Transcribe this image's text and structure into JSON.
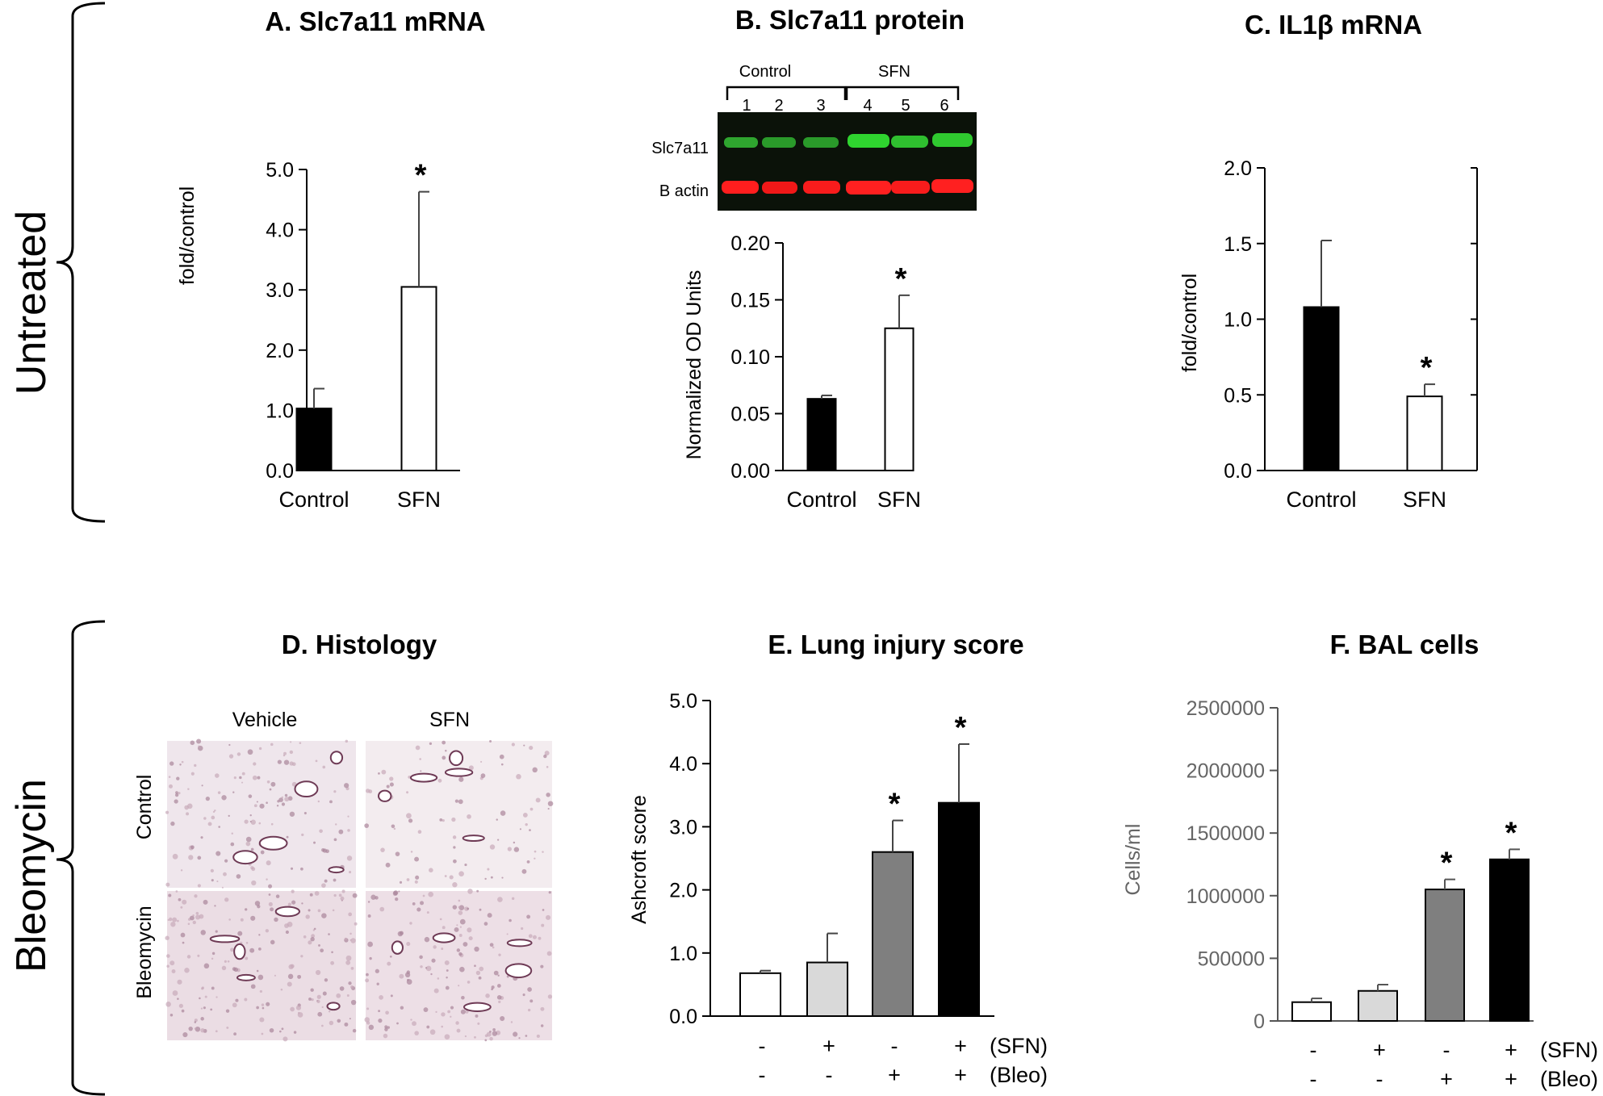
{
  "section_labels": {
    "top": "Untreated",
    "bottom": "Bleomycin"
  },
  "blot": {
    "group_control": "Control",
    "group_sfn": "SFN",
    "lanes": [
      "1",
      "2",
      "3",
      "4",
      "5",
      "6"
    ],
    "row_labels": [
      "Slc7a11",
      "B actin"
    ],
    "colors": {
      "background": "#0b1209",
      "green_band": "#2fd42f",
      "red_band": "#ff1e1e"
    }
  },
  "histology": {
    "col_labels": [
      "Vehicle",
      "SFN"
    ],
    "row_labels": [
      "Control",
      "Bleomycin"
    ]
  },
  "colors": {
    "control_fill": "#000000",
    "sfn_fill": "#ffffff",
    "light_gray": "#d9d9d9",
    "dark_gray": "#7f7f7f",
    "axis_gray": "#666666"
  },
  "chart_data": [
    {
      "id": "A",
      "type": "bar",
      "title": "A.  Slc7a11 mRNA",
      "categories": [
        "Control",
        "SFN"
      ],
      "values": [
        1.03,
        3.05
      ],
      "errors": [
        0.33,
        1.58
      ],
      "significant": [
        false,
        true
      ],
      "ylabel": "fold/control",
      "ylim": [
        0,
        5
      ],
      "yticks": [
        "0.0",
        "1.0",
        "2.0",
        "3.0",
        "4.0",
        "5.0"
      ]
    },
    {
      "id": "B",
      "type": "bar",
      "title": "B.  Slc7a11 protein",
      "categories": [
        "Control",
        "SFN"
      ],
      "values": [
        0.063,
        0.125
      ],
      "errors": [
        0.003,
        0.029
      ],
      "significant": [
        false,
        true
      ],
      "ylabel": "Normalized OD Units",
      "ylim": [
        0,
        0.2
      ],
      "yticks": [
        "0.00",
        "0.05",
        "0.10",
        "0.15",
        "0.20"
      ]
    },
    {
      "id": "C",
      "type": "bar",
      "title": "C.  IL1β mRNA",
      "categories": [
        "Control",
        "SFN"
      ],
      "values": [
        1.08,
        0.49
      ],
      "errors": [
        0.44,
        0.08
      ],
      "significant": [
        false,
        true
      ],
      "ylabel": "fold/control",
      "ylim": [
        0,
        2
      ],
      "yticks": [
        "0.0",
        "0.5",
        "1.0",
        "1.5",
        "2.0"
      ]
    },
    {
      "id": "E",
      "type": "bar",
      "title": "E.  Lung injury score",
      "categories": [
        "-/-",
        "+/-",
        "-/+",
        "+/+"
      ],
      "values": [
        0.68,
        0.85,
        2.6,
        3.38
      ],
      "errors": [
        0.04,
        0.46,
        0.5,
        0.93
      ],
      "significant": [
        false,
        false,
        true,
        true
      ],
      "ylabel": "Ashcroft score",
      "ylim": [
        0,
        5
      ],
      "yticks": [
        "0.0",
        "1.0",
        "2.0",
        "3.0",
        "4.0",
        "5.0"
      ],
      "sfn_row": [
        "-",
        "+",
        "-",
        "+"
      ],
      "bleo_row": [
        "-",
        "-",
        "+",
        "+"
      ],
      "row_labels": [
        "(SFN)",
        "(Bleo)"
      ]
    },
    {
      "id": "F",
      "type": "bar",
      "title": "F.  BAL cells",
      "categories": [
        "-/-",
        "+/-",
        "-/+",
        "+/+"
      ],
      "values": [
        150000,
        240000,
        1050000,
        1290000
      ],
      "errors": [
        30000,
        50000,
        80000,
        80000
      ],
      "significant": [
        false,
        false,
        true,
        true
      ],
      "ylabel": "Cells/ml",
      "ylim": [
        0,
        2500000
      ],
      "yticks": [
        "0",
        "500000",
        "1000000",
        "1500000",
        "2000000",
        "2500000"
      ],
      "sfn_row": [
        "-",
        "+",
        "-",
        "+"
      ],
      "bleo_row": [
        "-",
        "-",
        "+",
        "+"
      ],
      "row_labels": [
        "(SFN)",
        "(Bleo)"
      ]
    }
  ]
}
